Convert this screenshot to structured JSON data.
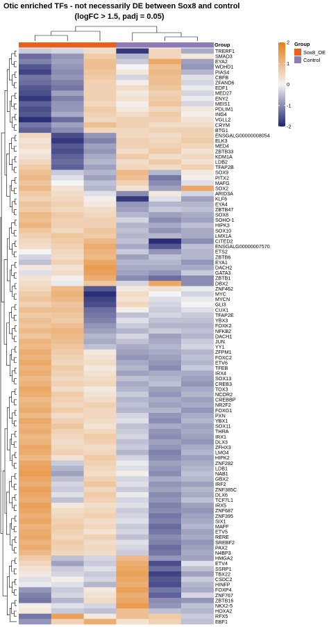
{
  "chart_data": {
    "type": "heatmap",
    "title_lines": [
      "Otic enriched TFs - not necessarily DE between Sox8 and control",
      "(logFC > 1.5, padj = 0.05)"
    ],
    "column_annotation": {
      "name": "Group",
      "values": [
        "Sox8_OE",
        "Sox8_OE",
        "Sox8_OE",
        "Control",
        "Control",
        "Control"
      ]
    },
    "legend_group": {
      "title": "Group",
      "entries": [
        {
          "label": "Sox8_OE",
          "color": "#E8601C"
        },
        {
          "label": "Control",
          "color": "#8E7CB8"
        }
      ]
    },
    "color_scale": {
      "min": -2,
      "max": 2,
      "ticks": [
        "2",
        "1",
        "0",
        "-1",
        "-2"
      ],
      "low_color": "#1F2470",
      "mid_color": "#F4F4F4",
      "high_color": "#E67E1A"
    },
    "rows": [
      "TRERF1",
      "SMAD3",
      "EYA2",
      "WDHD1",
      "PIAS4",
      "CBFB",
      "ZFAND6",
      "EDF1",
      "MED27",
      "ENY2",
      "MEIS1",
      "PDLIM1",
      "ING4",
      "VGLL2",
      "CRYM",
      "BTG1",
      "ENSGALG00000008054",
      "ELK3",
      "MED4",
      "ZBTB33",
      "KDM1A",
      "LDB2",
      "TFAP2B",
      "SOX9",
      "PITX2",
      "MAFG",
      "SOX2",
      "ARID3A",
      "KLF6",
      "EYA4",
      "ZBTB47",
      "SOX8",
      "SOHO-1",
      "HIPK3",
      "SOX10",
      "LMX1A",
      "CITED2",
      "ENSGALG00000007570",
      "ETS2",
      "ZBTB6",
      "EYA1",
      "DACH2",
      "GATA3",
      "ZBTB1",
      "DBX2",
      "ZNF462",
      "MYC",
      "MYCN",
      "GLI3",
      "CUX1",
      "TFAP2E",
      "YBX3",
      "FOXK2",
      "NFKB2",
      "DACH1",
      "JUN",
      "YY1",
      "ZFPM1",
      "FOXC2",
      "ETV6",
      "TFEB",
      "IRX4",
      "SOX13",
      "CREB3",
      "TOX3",
      "NCOR2",
      "CREBBP",
      "NR2F2",
      "FOXG1",
      "PXN",
      "YBX1",
      "SOX11",
      "THRA",
      "IRX1",
      "DLX3",
      "ZFHX3",
      "LMO4",
      "HIPK2",
      "ZNF282",
      "LDB1",
      "NAB1",
      "GBX2",
      "IRF2",
      "ZNF385C",
      "DLX6",
      "TCF7L1",
      "IRX5",
      "ZNF687",
      "ZNF395",
      "SIX1",
      "MAFF",
      "ETV5",
      "RERE",
      "SREBF2",
      "PAX2",
      "N4BP3",
      "HMGA2",
      "ETV4",
      "SSRP1",
      "TBX22",
      "CSDC2",
      "HINFP",
      "FOXP4",
      "ZNF767",
      "ZBTB16",
      "NKX2-5",
      "HOXA2",
      "RFX5",
      "EBF1"
    ],
    "values": [
      [
        -0.4,
        -0.3,
        0.4,
        -1.8,
        0.5,
        -0.7
      ],
      [
        -1.3,
        -0.9,
        0.7,
        -0.6,
        0.5,
        0.2
      ],
      [
        -1.1,
        -0.8,
        0.9,
        -0.4,
        1.3,
        -0.8
      ],
      [
        -1.5,
        -0.9,
        0.9,
        0.0,
        0.9,
        -0.9
      ],
      [
        -1.7,
        -1.0,
        0.8,
        0.2,
        1.0,
        -0.6
      ],
      [
        -1.2,
        -0.9,
        0.7,
        -0.3,
        0.9,
        -0.2
      ],
      [
        -1.3,
        -1.1,
        0.6,
        0.1,
        0.9,
        -0.3
      ],
      [
        -1.5,
        -1.2,
        0.6,
        0.4,
        0.8,
        -0.1
      ],
      [
        -1.6,
        -0.8,
        0.6,
        0.2,
        0.6,
        -0.3
      ],
      [
        -1.8,
        -1.1,
        0.6,
        0.3,
        0.7,
        -0.1
      ],
      [
        -1.4,
        -0.9,
        0.5,
        0.1,
        0.8,
        -0.3
      ],
      [
        -1.6,
        -0.9,
        0.7,
        0.2,
        0.5,
        0.2
      ],
      [
        -1.5,
        -0.7,
        0.6,
        0.4,
        0.7,
        0.1
      ],
      [
        -1.9,
        -1.3,
        0.5,
        0.6,
        0.6,
        0.3
      ],
      [
        -1.2,
        -0.8,
        0.9,
        0.6,
        0.4,
        0.4
      ],
      [
        -1.4,
        -1.0,
        0.5,
        0.5,
        0.6,
        0.6
      ],
      [
        0.5,
        -1.6,
        -0.9,
        0.5,
        0.4,
        0.6
      ],
      [
        0.3,
        -1.8,
        -1.1,
        0.6,
        0.5,
        0.7
      ],
      [
        0.4,
        -1.5,
        -0.8,
        0.6,
        0.6,
        0.5
      ],
      [
        0.2,
        -1.6,
        -0.9,
        0.4,
        0.7,
        0.3
      ],
      [
        0.3,
        -1.4,
        -0.7,
        0.7,
        0.4,
        0.5
      ],
      [
        0.5,
        -1.3,
        -0.6,
        0.4,
        0.7,
        0.3
      ],
      [
        0.7,
        -1.4,
        -0.8,
        0.5,
        0.4,
        0.6
      ],
      [
        0.9,
        -0.4,
        -0.6,
        1.0,
        -0.6,
        0.2
      ],
      [
        1.0,
        -0.2,
        -0.8,
        0.9,
        -1.2,
        0.1
      ],
      [
        0.8,
        0.0,
        -0.5,
        0.6,
        -1.0,
        -0.2
      ],
      [
        1.0,
        0.3,
        -0.6,
        0.3,
        -0.8,
        1.3
      ],
      [
        0.7,
        0.4,
        -0.2,
        -1.0,
        0.2,
        -0.3
      ],
      [
        0.6,
        0.5,
        0.1,
        -1.8,
        -0.2,
        -0.8
      ],
      [
        0.8,
        0.6,
        0.2,
        -0.9,
        -0.6,
        -0.6
      ],
      [
        0.7,
        0.5,
        0.4,
        -0.8,
        -0.4,
        -0.5
      ],
      [
        1.0,
        0.7,
        0.5,
        -0.6,
        -0.8,
        -0.7
      ],
      [
        0.9,
        0.6,
        0.6,
        -0.3,
        -1.0,
        -0.8
      ],
      [
        1.1,
        0.6,
        0.6,
        -0.6,
        -0.7,
        -0.5
      ],
      [
        0.8,
        0.5,
        0.8,
        -0.5,
        -0.9,
        -0.7
      ],
      [
        0.6,
        0.8,
        0.7,
        -0.6,
        -0.6,
        -0.7
      ],
      [
        0.5,
        0.7,
        1.0,
        -0.5,
        -1.9,
        -1.0
      ],
      [
        0.4,
        0.6,
        1.2,
        -0.7,
        -1.5,
        -0.5
      ],
      [
        0.0,
        0.5,
        1.1,
        -0.4,
        -0.9,
        -0.6
      ],
      [
        -0.3,
        0.4,
        1.0,
        -0.8,
        -0.5,
        -0.6
      ],
      [
        -0.5,
        0.6,
        1.3,
        -0.6,
        -0.6,
        -0.9
      ],
      [
        0.2,
        0.3,
        1.5,
        -0.7,
        -0.7,
        -0.7
      ],
      [
        -0.2,
        0.4,
        1.4,
        -0.8,
        -0.9,
        -0.4
      ],
      [
        0.3,
        0.1,
        1.2,
        -1.0,
        -1.3,
        -1.0
      ],
      [
        0.4,
        -0.1,
        0.8,
        -0.3,
        1.3,
        -1.0
      ],
      [
        0.5,
        1.0,
        -1.5,
        0.2,
        0.3,
        -0.1
      ],
      [
        0.7,
        1.1,
        -1.9,
        0.4,
        0.0,
        -0.3
      ],
      [
        0.8,
        1.0,
        -1.7,
        0.3,
        -0.2,
        -0.1
      ],
      [
        0.6,
        0.8,
        -1.6,
        0.5,
        -0.3,
        0.0
      ],
      [
        0.9,
        0.9,
        -1.3,
        0.1,
        -0.4,
        -0.2
      ],
      [
        0.7,
        0.8,
        -1.2,
        -0.5,
        -0.3,
        -0.4
      ],
      [
        0.9,
        0.7,
        -1.1,
        -0.2,
        -0.5,
        -0.5
      ],
      [
        0.8,
        0.9,
        -0.9,
        -0.4,
        -0.6,
        -0.6
      ],
      [
        1.0,
        1.1,
        -0.8,
        -0.6,
        -0.4,
        -0.5
      ],
      [
        0.8,
        1.0,
        -0.6,
        -0.3,
        -0.8,
        -0.6
      ],
      [
        1.1,
        0.9,
        -0.7,
        -0.5,
        -0.7,
        -0.4
      ],
      [
        1.0,
        0.8,
        -0.5,
        -0.7,
        -0.6,
        -0.3
      ],
      [
        1.2,
        0.7,
        0.2,
        -0.8,
        -0.7,
        -0.6
      ],
      [
        1.1,
        0.6,
        0.3,
        -0.9,
        -0.8,
        -0.5
      ],
      [
        1.3,
        0.5,
        0.4,
        -0.7,
        -0.9,
        -0.6
      ],
      [
        1.1,
        0.7,
        0.2,
        -0.6,
        -1.0,
        -0.4
      ],
      [
        1.2,
        0.6,
        0.3,
        -0.8,
        -0.7,
        -0.7
      ],
      [
        1.0,
        0.5,
        0.4,
        -0.5,
        -0.6,
        -0.8
      ],
      [
        1.1,
        0.6,
        0.5,
        -0.7,
        -0.5,
        -0.9
      ],
      [
        1.3,
        0.4,
        0.2,
        -0.6,
        -0.8,
        -0.7
      ],
      [
        1.2,
        0.7,
        0.3,
        -0.4,
        -0.9,
        -0.6
      ],
      [
        1.0,
        0.6,
        0.4,
        -0.6,
        -0.7,
        -0.8
      ],
      [
        1.1,
        0.5,
        0.6,
        -0.5,
        -0.8,
        -0.7
      ],
      [
        1.2,
        0.7,
        0.5,
        -0.6,
        -0.6,
        -0.9
      ],
      [
        1.0,
        0.4,
        0.5,
        -0.3,
        -0.9,
        -0.7
      ],
      [
        1.3,
        0.6,
        0.4,
        -0.2,
        -1.0,
        -0.6
      ],
      [
        1.1,
        0.8,
        0.3,
        -0.5,
        -0.7,
        -0.8
      ],
      [
        1.2,
        0.6,
        0.5,
        -0.4,
        -0.9,
        -0.7
      ],
      [
        1.0,
        0.5,
        0.7,
        -0.3,
        -1.0,
        -0.8
      ],
      [
        1.1,
        0.4,
        0.6,
        -0.5,
        -0.8,
        -0.9
      ],
      [
        1.3,
        0.5,
        0.4,
        -0.4,
        -0.9,
        -0.7
      ],
      [
        1.2,
        0.6,
        0.5,
        -0.6,
        -1.1,
        -0.6
      ],
      [
        1.0,
        0.3,
        0.7,
        -0.3,
        -1.0,
        -0.8
      ],
      [
        1.3,
        -0.4,
        0.6,
        -0.1,
        -0.8,
        -0.7
      ],
      [
        1.4,
        -0.6,
        0.5,
        -0.2,
        -0.9,
        -0.6
      ],
      [
        1.5,
        -0.8,
        0.4,
        0.1,
        -1.0,
        -0.5
      ],
      [
        1.3,
        -0.5,
        0.6,
        -0.3,
        -0.7,
        -0.6
      ],
      [
        1.2,
        -0.3,
        0.8,
        -0.2,
        -0.9,
        -0.8
      ],
      [
        1.4,
        -0.4,
        0.5,
        -0.4,
        -0.8,
        -0.6
      ],
      [
        1.3,
        -0.2,
        0.7,
        -0.1,
        -1.0,
        -0.7
      ],
      [
        1.2,
        -0.5,
        0.6,
        -0.3,
        -0.9,
        -0.5
      ],
      [
        1.4,
        0.2,
        0.4,
        -0.2,
        -1.1,
        -0.8
      ],
      [
        1.3,
        0.4,
        0.5,
        -0.4,
        -1.0,
        -0.9
      ],
      [
        1.2,
        0.5,
        0.6,
        -0.3,
        -1.2,
        -0.8
      ],
      [
        1.3,
        0.6,
        0.4,
        -0.2,
        -1.1,
        -0.7
      ],
      [
        1.1,
        0.7,
        0.5,
        -0.4,
        -1.3,
        -0.6
      ],
      [
        1.2,
        0.6,
        0.3,
        -0.3,
        -1.2,
        -0.8
      ],
      [
        1.3,
        0.5,
        0.6,
        -0.5,
        -1.0,
        -0.7
      ],
      [
        1.1,
        0.7,
        0.4,
        -0.2,
        -1.1,
        -0.9
      ],
      [
        1.2,
        0.6,
        0.5,
        -0.3,
        -1.3,
        -0.8
      ],
      [
        1.0,
        0.5,
        0.4,
        -0.4,
        -1.2,
        -0.7
      ],
      [
        0.7,
        -0.5,
        -0.3,
        1.0,
        -0.9,
        -0.8
      ],
      [
        0.5,
        -0.8,
        -0.4,
        1.2,
        -1.6,
        -0.2
      ],
      [
        0.3,
        -0.4,
        -0.2,
        1.3,
        -1.3,
        -0.5
      ],
      [
        0.2,
        -0.3,
        -0.4,
        1.4,
        -1.7,
        -0.8
      ],
      [
        -0.2,
        0.1,
        -0.3,
        1.3,
        -1.5,
        -0.4
      ],
      [
        -0.1,
        -0.2,
        -0.6,
        1.2,
        -1.6,
        -0.6
      ],
      [
        -0.9,
        -0.4,
        0.2,
        1.4,
        -1.2,
        -0.7
      ],
      [
        -1.1,
        -0.3,
        0.3,
        1.2,
        -1.4,
        -0.3
      ],
      [
        -1.2,
        -0.6,
        0.4,
        1.3,
        -1.0,
        -0.9
      ],
      [
        0.1,
        -0.2,
        -0.3,
        1.5,
        -0.9,
        -0.5
      ],
      [
        0.2,
        -0.4,
        -0.5,
        0.9,
        -0.5,
        -0.6
      ],
      [
        -1.2,
        1.4,
        0.2,
        0.9,
        0.7,
        -0.4
      ],
      [
        -0.9,
        0.6,
        1.2,
        0.3,
        0.6,
        -0.5
      ]
    ]
  }
}
